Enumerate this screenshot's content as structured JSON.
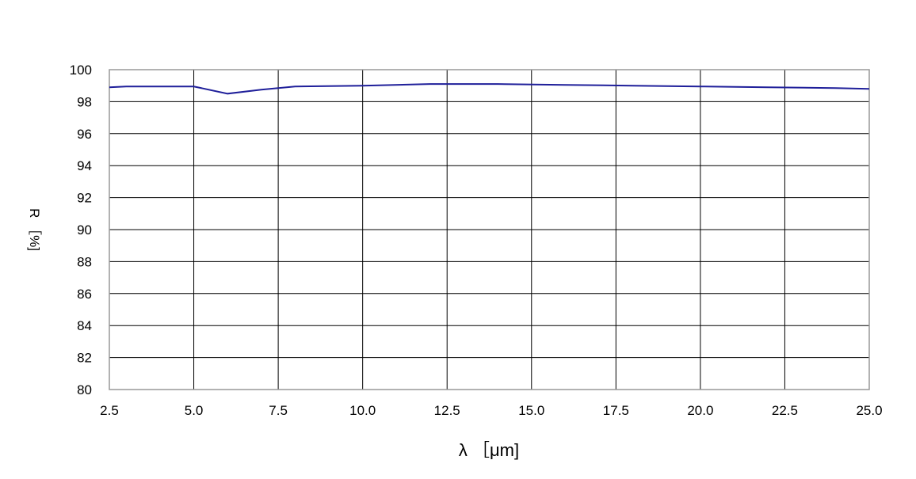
{
  "chart_data": {
    "type": "line",
    "title": "",
    "xlabel": "λ ［μm]",
    "ylabel": "R ［%]",
    "xlim": [
      2.5,
      25.0
    ],
    "ylim": [
      80,
      100
    ],
    "xticks": [
      "2.5",
      "5.0",
      "7.5",
      "10.0",
      "12.5",
      "15.0",
      "17.5",
      "20.0",
      "22.5",
      "25.0"
    ],
    "yticks": [
      "80",
      "82",
      "84",
      "86",
      "88",
      "90",
      "92",
      "94",
      "96",
      "98",
      "100"
    ],
    "grid": true,
    "legend": "none",
    "series": [
      {
        "color": "#1f1f9a",
        "x": [
          2.5,
          3,
          4,
          5,
          6,
          7,
          8,
          10,
          12,
          14,
          16,
          18,
          20,
          22,
          24,
          25
        ],
        "y": [
          98.9,
          98.95,
          98.95,
          98.95,
          98.5,
          98.75,
          98.95,
          99.0,
          99.1,
          99.1,
          99.05,
          99.0,
          98.95,
          98.9,
          98.85,
          98.8
        ]
      }
    ]
  }
}
